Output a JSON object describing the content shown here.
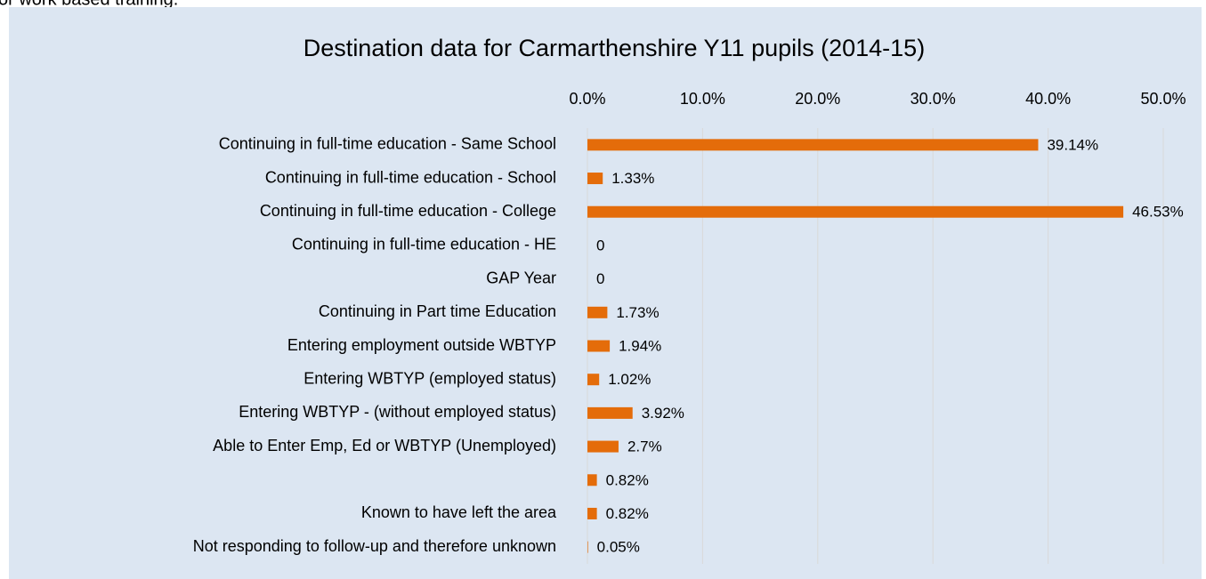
{
  "page_text": "or work based training.",
  "chart_data": {
    "type": "bar",
    "orientation": "horizontal",
    "title": "Destination data for Carmarthenshire Y11 pupils (2014-15)",
    "categories": [
      "Continuing in full-time education - Same School",
      "Continuing in full-time education - School",
      "Continuing in full-time education - College",
      "Continuing in full-time education - HE",
      "GAP Year",
      "Continuing in Part time Education",
      "Entering employment outside WBTYP",
      "Entering WBTYP (employed status)",
      "Entering WBTYP - (without employed status)",
      "Able to Enter Emp, Ed or WBTYP (Unemployed)",
      null,
      "Known to have left the area",
      "Not responding to follow-up and therefore unknown"
    ],
    "values": [
      39.14,
      1.33,
      46.53,
      0,
      0,
      1.73,
      1.94,
      1.02,
      3.92,
      2.7,
      0.82,
      0.82,
      0.05
    ],
    "value_labels": [
      "39.14%",
      "1.33%",
      "46.53%",
      "0",
      "0",
      "1.73%",
      "1.94%",
      "1.02%",
      "3.92%",
      "2.7%",
      "0.82%",
      "0.82%",
      "0.05%"
    ],
    "color": "#e46c0a",
    "xlim": [
      0,
      50
    ],
    "xticks": [
      {
        "value": 0,
        "label": "0.0%"
      },
      {
        "value": 10,
        "label": "10.0%"
      },
      {
        "value": 20,
        "label": "20.0%"
      },
      {
        "value": 30,
        "label": "30.0%"
      },
      {
        "value": 40,
        "label": "40.0%"
      },
      {
        "value": 50,
        "label": "50.0%"
      }
    ],
    "grid": true
  }
}
